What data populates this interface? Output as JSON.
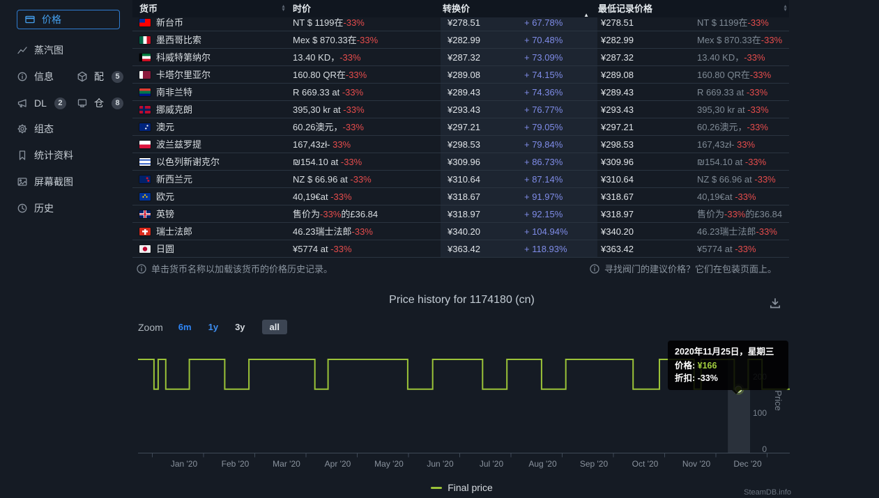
{
  "colors": {
    "background": "#151b24",
    "header_bg": "#10161f",
    "separator": "#2a3440",
    "text": "#dde2e6",
    "muted": "#7f8a95",
    "red": "#e64c4c",
    "pct_blue": "#7f8ce8",
    "active_blue": "#46a1f0",
    "green": "#9bc338",
    "sorted_col_bg": "#1d2531"
  },
  "sidebar": {
    "rows": [
      [
        {
          "id": "prices",
          "icon": "card-icon",
          "label": "价格",
          "active": true
        }
      ],
      [
        {
          "id": "charts",
          "icon": "chart-line-icon",
          "label": "蒸汽图"
        }
      ],
      [
        {
          "id": "info",
          "icon": "info-icon",
          "label": "信息"
        },
        {
          "id": "packages",
          "icon": "cube-icon",
          "label": "配",
          "badge": "5"
        }
      ],
      [
        {
          "id": "dlc",
          "icon": "megaphone-icon",
          "label": "DL",
          "badge": "2"
        },
        {
          "id": "depots",
          "icon": "depot-icon",
          "label": "仓",
          "badge": "8"
        }
      ],
      [
        {
          "id": "config",
          "icon": "gear-icon",
          "label": "组态"
        }
      ],
      [
        {
          "id": "stats",
          "icon": "bookmark-icon",
          "label": "统计资料"
        }
      ],
      [
        {
          "id": "screenshots",
          "icon": "image-icon",
          "label": "屏幕截图"
        }
      ],
      [
        {
          "id": "history",
          "icon": "clock-icon",
          "label": "历史"
        }
      ]
    ]
  },
  "table": {
    "headers": [
      {
        "label": "货币",
        "sort": "both"
      },
      {
        "label": "时价",
        "sort": "none"
      },
      {
        "label": "转换价",
        "sort": "asc"
      },
      {
        "label": "最低记录价格",
        "sort": "both"
      }
    ],
    "rows": [
      {
        "country": "taiwan",
        "currency": "新台币",
        "current": [
          "NT $ 1199在",
          "-33%",
          ""
        ],
        "converted": "¥278.51",
        "pct": "+ 67.78%",
        "lowest": "¥278.51",
        "record": [
          "NT $ 1199在",
          "-33%",
          ""
        ]
      },
      {
        "country": "mexico",
        "currency": "墨西哥比索",
        "current": [
          "Mex $ 870.33在",
          "-33%",
          ""
        ],
        "converted": "¥282.99",
        "pct": "+ 70.48%",
        "lowest": "¥282.99",
        "record": [
          "Mex $ 870.33在",
          "-33%",
          ""
        ]
      },
      {
        "country": "kuwait",
        "currency": "科威特第纳尔",
        "current": [
          "13.40 KD，",
          "-33%",
          ""
        ],
        "converted": "¥287.32",
        "pct": "+ 73.09%",
        "lowest": "¥287.32",
        "record": [
          "13.40 KD，",
          "-33%",
          ""
        ]
      },
      {
        "country": "qatar",
        "currency": "卡塔尔里亚尔",
        "current": [
          "160.80 QR在",
          "-33%",
          ""
        ],
        "converted": "¥289.08",
        "pct": "+ 74.15%",
        "lowest": "¥289.08",
        "record": [
          "160.80 QR在",
          "-33%",
          ""
        ]
      },
      {
        "country": "south-africa",
        "currency": "南非兰特",
        "current": [
          "R 669.33 at ",
          "-33%",
          ""
        ],
        "converted": "¥289.43",
        "pct": "+ 74.36%",
        "lowest": "¥289.43",
        "record": [
          "R 669.33 at ",
          "-33%",
          ""
        ]
      },
      {
        "country": "norway",
        "currency": "挪威克朗",
        "current": [
          "395,30 kr at ",
          "-33%",
          ""
        ],
        "converted": "¥293.43",
        "pct": "+ 76.77%",
        "lowest": "¥293.43",
        "record": [
          "395,30 kr at ",
          "-33%",
          ""
        ]
      },
      {
        "country": "australia",
        "currency": "澳元",
        "current": [
          "60.26澳元，",
          "-33%",
          ""
        ],
        "converted": "¥297.21",
        "pct": "+ 79.05%",
        "lowest": "¥297.21",
        "record": [
          "60.26澳元，",
          "-33%",
          ""
        ]
      },
      {
        "country": "poland",
        "currency": "波兰兹罗提",
        "current": [
          "167,43zł- ",
          "33%",
          ""
        ],
        "converted": "¥298.53",
        "pct": "+ 79.84%",
        "lowest": "¥298.53",
        "record": [
          "167,43zł- ",
          "33%",
          ""
        ]
      },
      {
        "country": "israel",
        "currency": "以色列新谢克尔",
        "current": [
          "₪154.10 at ",
          "-33%",
          ""
        ],
        "converted": "¥309.96",
        "pct": "+ 86.73%",
        "lowest": "¥309.96",
        "record": [
          "₪154.10 at ",
          "-33%",
          ""
        ]
      },
      {
        "country": "new-zealand",
        "currency": "新西兰元",
        "current": [
          "NZ $ 66.96 at ",
          "-33%",
          ""
        ],
        "converted": "¥310.64",
        "pct": "+ 87.14%",
        "lowest": "¥310.64",
        "record": [
          "NZ $ 66.96 at ",
          "-33%",
          ""
        ]
      },
      {
        "country": "eu",
        "currency": "欧元",
        "current": [
          "40,19€at ",
          "-33%",
          ""
        ],
        "converted": "¥318.67",
        "pct": "+ 91.97%",
        "lowest": "¥318.67",
        "record": [
          "40,19€at ",
          "-33%",
          ""
        ]
      },
      {
        "country": "uk",
        "currency": "英镑",
        "current": [
          "售价为",
          "-33%",
          "的£36.84"
        ],
        "converted": "¥318.97",
        "pct": "+ 92.15%",
        "lowest": "¥318.97",
        "record": [
          "售价为",
          "-33%",
          "的£36.84"
        ]
      },
      {
        "country": "switzerland",
        "currency": "瑞士法郎",
        "current": [
          "46.23瑞士法郎",
          "-33%",
          ""
        ],
        "converted": "¥340.20",
        "pct": "+ 104.94%",
        "lowest": "¥340.20",
        "record": [
          "46.23瑞士法郎",
          "-33%",
          ""
        ]
      },
      {
        "country": "japan",
        "currency": "日圆",
        "current": [
          "¥5774 at ",
          "-33%",
          ""
        ],
        "converted": "¥363.42",
        "pct": "+ 118.93%",
        "lowest": "¥363.42",
        "record": [
          "¥5774 at ",
          "-33%",
          ""
        ]
      }
    ],
    "flags": {
      "taiwan": "linear-gradient(to right,#0a2f9e 50%,rgba(0,0,0,0) 50%) no-repeat 0 0/100% 50%,#fe0000",
      "mexico": "linear-gradient(to right,#006847 33.3%,#ffffff 33.3% 66.6%,#ce1126 66.6%)",
      "kuwait": "linear-gradient(to right,#000000 25%,rgba(0,0,0,0) 25%) no-repeat,linear-gradient(to bottom,#007a3d 33.3%,#ffffff 33.3% 66.6%,#ce1126 66.6%)",
      "qatar": "linear-gradient(to right,#ffffff 30%,#8d1b3d 30%)",
      "south-africa": "linear-gradient(to bottom,#e03c31 33%,#007749 33% 66%,#001489 66%)",
      "norway": "linear-gradient(#00205b,#00205b) no-repeat 5px 0/3px 100%,linear-gradient(#00205b,#00205b) no-repeat 0 4px/100% 3px,#ba0c2f",
      "australia": "radial-gradient(circle at 72% 32%,#ffffff 1px,rgba(0,0,0,0) 1.3px),radial-gradient(circle at 58% 68%,#ffffff 1px,rgba(0,0,0,0) 1.3px),#00247d",
      "poland": "linear-gradient(to bottom,#ffffff 50%,#dc143c 50%)",
      "israel": "linear-gradient(to bottom,#ffffff 0 18%,#0038b8 18% 32%,#ffffff 32% 68%,#0038b8 68% 82%,#ffffff 82%)",
      "new-zealand": "radial-gradient(circle at 70% 35%,#cc142b 1.4px,rgba(0,0,0,0) 1.7px),radial-gradient(circle at 80% 68%,#cc142b 1.4px,rgba(0,0,0,0) 1.7px),#012169",
      "eu": "radial-gradient(circle at 50% 28%,#ffcc00 1px,rgba(0,0,0,0) 1.3px),radial-gradient(circle at 34% 52%,#ffcc00 1px,rgba(0,0,0,0) 1.3px),radial-gradient(circle at 66% 52%,#ffcc00 1px,rgba(0,0,0,0) 1.3px),#003399",
      "uk": "linear-gradient(to bottom,rgba(0,0,0,0) 44%,#c8102e 44% 56%,rgba(0,0,0,0) 56%),linear-gradient(to right,rgba(0,0,0,0) 45%,#c8102e 45% 55%,rgba(0,0,0,0) 55%),linear-gradient(to bottom,rgba(0,0,0,0) 36%,#ffffff 36% 64%,rgba(0,0,0,0) 64%),linear-gradient(to right,rgba(0,0,0,0) 39%,#ffffff 39% 61%,rgba(0,0,0,0) 61%),#012169",
      "switzerland": "linear-gradient(#ffffff,#ffffff) no-repeat 50% 50%/8px 2.5px,linear-gradient(#ffffff,#ffffff) no-repeat 50% 50%/2.5px 8px,#da291c",
      "japan": "radial-gradient(circle at 50% 50%,#bc002d 3px,rgba(0,0,0,0) 3.4px),#efefef"
    },
    "note_left": "单击货币名称以加载该货币的价格历史记录。",
    "note_right": "寻找阀门的建议价格？它们在包装页面上。"
  },
  "chart": {
    "zoom_label": "Zoom",
    "zoom_options": [
      {
        "label": "6m",
        "style": "link-bold"
      },
      {
        "label": "1y",
        "style": "link"
      },
      {
        "label": "3y",
        "style": "plain"
      },
      {
        "label": "all",
        "style": "selected"
      }
    ],
    "tooltip": {
      "date": "2020年11月25日，星期三",
      "price_label": "价格:",
      "price": "¥166",
      "discount_label": "折扣:",
      "discount": "-33%"
    },
    "watermark": "SteamDB.info"
  },
  "chart_data": {
    "type": "line",
    "step": true,
    "title": "Price history for 1174180 (cn)",
    "ylabel": "Price",
    "y_ticks": [
      0,
      100,
      200
    ],
    "ylim": [
      0,
      270
    ],
    "x_labels": [
      "Jan '20",
      "Feb '20",
      "Mar '20",
      "Apr '20",
      "May '20",
      "Jun '20",
      "Jul '20",
      "Aug '20",
      "Sep '20",
      "Oct '20",
      "Nov '20",
      "Dec '20"
    ],
    "grid": false,
    "legend_position": "bottom",
    "series": [
      {
        "name": "Final price",
        "color": "#9bc338",
        "regular_price": 248,
        "sale_price": 166,
        "segments": [
          [
            0.0,
            0.0245,
            248
          ],
          [
            0.0245,
            0.0309,
            166
          ],
          [
            0.0309,
            0.0426,
            248
          ],
          [
            0.0426,
            0.0787,
            166
          ],
          [
            0.0787,
            0.133,
            248
          ],
          [
            0.133,
            0.1702,
            166
          ],
          [
            0.1702,
            0.2713,
            248
          ],
          [
            0.2713,
            0.2915,
            166
          ],
          [
            0.2915,
            0.4138,
            248
          ],
          [
            0.4138,
            0.4521,
            166
          ],
          [
            0.4521,
            0.5287,
            248
          ],
          [
            0.5287,
            0.566,
            166
          ],
          [
            0.566,
            0.6191,
            248
          ],
          [
            0.6191,
            0.6564,
            166
          ],
          [
            0.6564,
            0.7596,
            248
          ],
          [
            0.7596,
            0.8,
            166
          ],
          [
            0.8,
            0.8532,
            248
          ],
          [
            0.8532,
            0.8638,
            166
          ],
          [
            0.8638,
            0.9149,
            248
          ],
          [
            0.9149,
            0.9362,
            166
          ],
          [
            0.9362,
            0.9574,
            248
          ],
          [
            0.9574,
            1.0,
            166
          ]
        ]
      }
    ],
    "hover_point": {
      "x_frac": 0.9213,
      "value": 166,
      "date": "2020年11月25日，星期三",
      "discount": "-33%"
    },
    "crosshair_band": {
      "x_start_frac": 0.905,
      "x_end_frac": 0.939
    }
  }
}
